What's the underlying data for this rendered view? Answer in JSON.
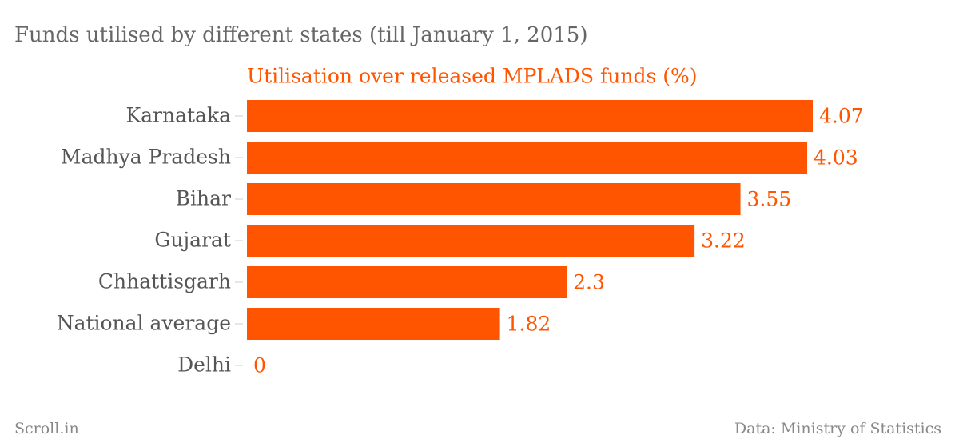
{
  "chart_data": {
    "type": "bar",
    "title": "Funds utilised by different states (till January 1, 2015)",
    "subtitle": "Utilisation over released MPLADS funds (%)",
    "categories": [
      "Karnataka",
      "Madhya Pradesh",
      "Bihar",
      "Gujarat",
      "Chhattisgarh",
      "National average",
      "Delhi"
    ],
    "values": [
      4.07,
      4.03,
      3.55,
      3.22,
      2.3,
      1.82,
      0
    ],
    "color": "#ff5500",
    "credit": "Scroll.in",
    "source": "Data: Ministry of Statistics"
  }
}
